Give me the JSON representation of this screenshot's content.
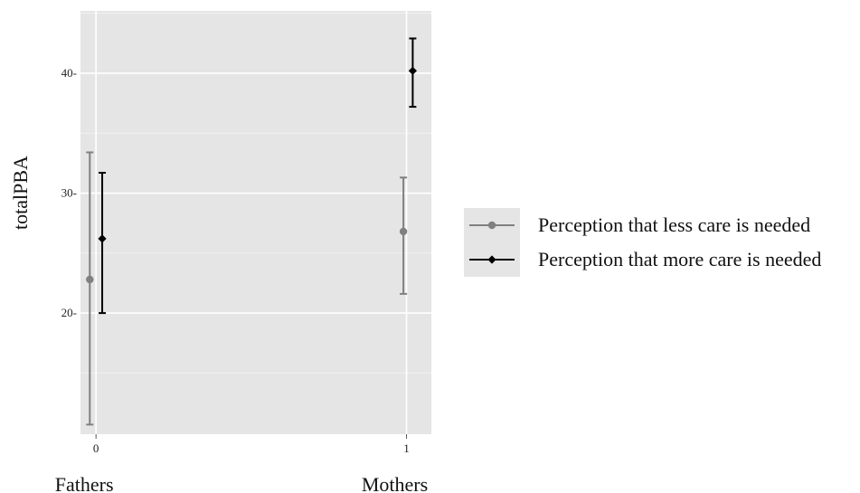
{
  "chart_data": {
    "type": "scatter",
    "ylabel": "totalPBA",
    "x_ticks": [
      {
        "value": 0,
        "label": "0",
        "group_label": "Fathers"
      },
      {
        "value": 1,
        "label": "1",
        "group_label": "Mothers"
      }
    ],
    "xlim": [
      -0.05,
      1.08
    ],
    "ylim": [
      9.9,
      45.2
    ],
    "y_ticks": [
      20,
      30,
      40
    ],
    "y_tick_suffix": "-",
    "grid": true,
    "legend_position": "right",
    "series": [
      {
        "name": "Perception that less care is needed",
        "color": "#808080",
        "marker": "circle",
        "points": [
          {
            "x": -0.02,
            "y": 22.8,
            "lower": 10.7,
            "upper": 33.4
          },
          {
            "x": 0.99,
            "y": 26.8,
            "lower": 21.6,
            "upper": 31.3
          }
        ]
      },
      {
        "name": "Perception that more care is needed",
        "color": "#000000",
        "marker": "diamond",
        "points": [
          {
            "x": 0.02,
            "y": 26.2,
            "lower": 20.0,
            "upper": 31.7
          },
          {
            "x": 1.02,
            "y": 40.2,
            "lower": 37.2,
            "upper": 42.9
          }
        ]
      }
    ]
  }
}
